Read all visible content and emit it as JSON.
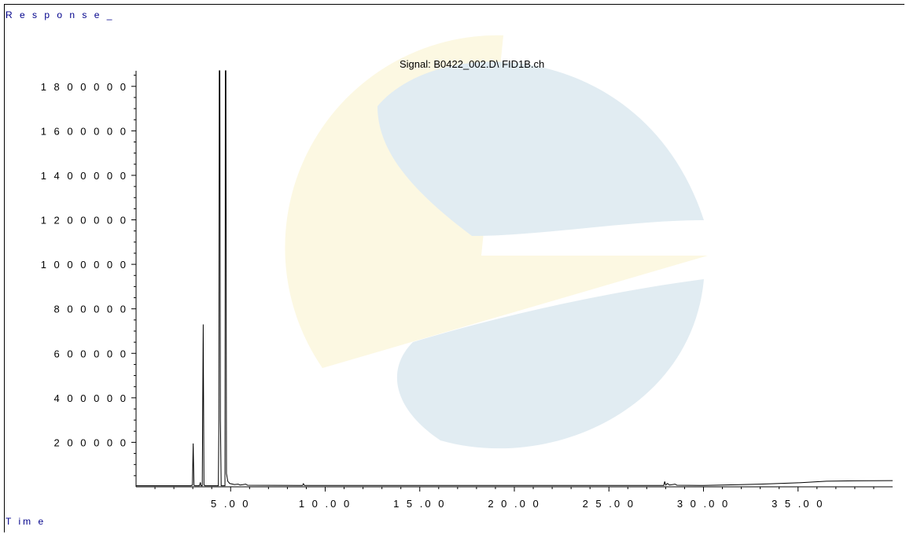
{
  "labels": {
    "response": "R e s p o n s e _",
    "time": "T im e",
    "signal": "Signal: B0422_002.D\\ FID1B.ch"
  },
  "watermark": {
    "icon": "company-logo-watermark",
    "colors": {
      "blue": "#e1ecf2",
      "yellow": "#fcf8e2"
    }
  },
  "chart_data": {
    "type": "line",
    "title": "Signal: B0422_002.D\\ FID1B.ch",
    "xlabel": "T im e",
    "ylabel": "R e s p o n s e _",
    "xlim": [
      0.0,
      40.0
    ],
    "ylim": [
      0,
      1870000
    ],
    "grid": false,
    "x_ticks": [
      5,
      10,
      15,
      20,
      25,
      30,
      35
    ],
    "x_tick_labels": [
      "5 .0 0",
      "1 0 .0 0",
      "1 5 .0 0",
      "2 0 .0 0",
      "2 5 .0 0",
      "3 0 .0 0",
      "3 5 .0 0"
    ],
    "y_ticks": [
      200000,
      400000,
      600000,
      800000,
      1000000,
      1200000,
      1400000,
      1600000,
      1800000
    ],
    "y_tick_labels": [
      "2 0 0 0 0 0",
      "4 0 0 0 0 0",
      "6 0 0 0 0 0",
      "8 0 0 0 0 0",
      "1 0 0 0 0 0 0",
      "1 2 0 0 0 0 0",
      "1 4 0 0 0 0 0",
      "1 6 0 0 0 0 0",
      "1 8 0 0 0 0 0"
    ],
    "series": [
      {
        "color": "#000000",
        "points": [
          [
            0.0,
            5000
          ],
          [
            2.9,
            5000
          ],
          [
            2.98,
            8000
          ],
          [
            3.02,
            195000
          ],
          [
            3.06,
            8000
          ],
          [
            3.1,
            5000
          ],
          [
            3.35,
            5000
          ],
          [
            3.4,
            20000
          ],
          [
            3.43,
            5000
          ],
          [
            3.5,
            5000
          ],
          [
            3.55,
            730000
          ],
          [
            3.59,
            10000
          ],
          [
            3.63,
            5000
          ],
          [
            4.35,
            5000
          ],
          [
            4.38,
            300000
          ],
          [
            4.4,
            1870000
          ],
          [
            4.43,
            1870000
          ],
          [
            4.46,
            300000
          ],
          [
            4.5,
            5000
          ],
          [
            4.7,
            5000
          ],
          [
            4.72,
            1870000
          ],
          [
            4.75,
            1870000
          ],
          [
            4.78,
            60000
          ],
          [
            4.85,
            25000
          ],
          [
            4.95,
            15000
          ],
          [
            5.2,
            10000
          ],
          [
            5.4,
            12000
          ],
          [
            5.5,
            8000
          ],
          [
            5.8,
            12000
          ],
          [
            5.9,
            7000
          ],
          [
            8.8,
            6000
          ],
          [
            8.85,
            14000
          ],
          [
            8.9,
            6000
          ],
          [
            27.9,
            6000
          ],
          [
            27.95,
            24000
          ],
          [
            28.0,
            8000
          ],
          [
            28.1,
            15000
          ],
          [
            28.2,
            8000
          ],
          [
            28.5,
            12000
          ],
          [
            28.6,
            7000
          ],
          [
            30.0,
            6000
          ],
          [
            31.0,
            8000
          ],
          [
            33.0,
            12000
          ],
          [
            35.0,
            18000
          ],
          [
            36.5,
            25000
          ],
          [
            38.0,
            27000
          ],
          [
            40.0,
            28000
          ]
        ]
      }
    ]
  }
}
